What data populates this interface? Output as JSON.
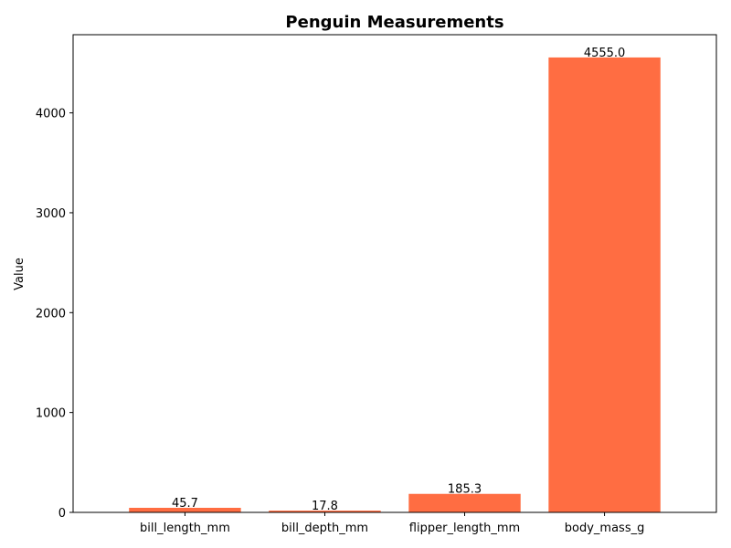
{
  "chart_data": {
    "type": "bar",
    "title": "Penguin Measurements",
    "xlabel": "",
    "ylabel": "Value",
    "categories": [
      "bill_length_mm",
      "bill_depth_mm",
      "flipper_length_mm",
      "body_mass_g"
    ],
    "values": [
      45.7,
      17.8,
      185.3,
      4555.0
    ],
    "value_labels": [
      "45.7",
      "17.8",
      "185.3",
      "4555.0"
    ],
    "ylim": [
      0,
      4782.75
    ],
    "yticks": [
      0,
      1000,
      2000,
      3000,
      4000
    ],
    "grid": false,
    "bar_color": "#ff6d42"
  }
}
